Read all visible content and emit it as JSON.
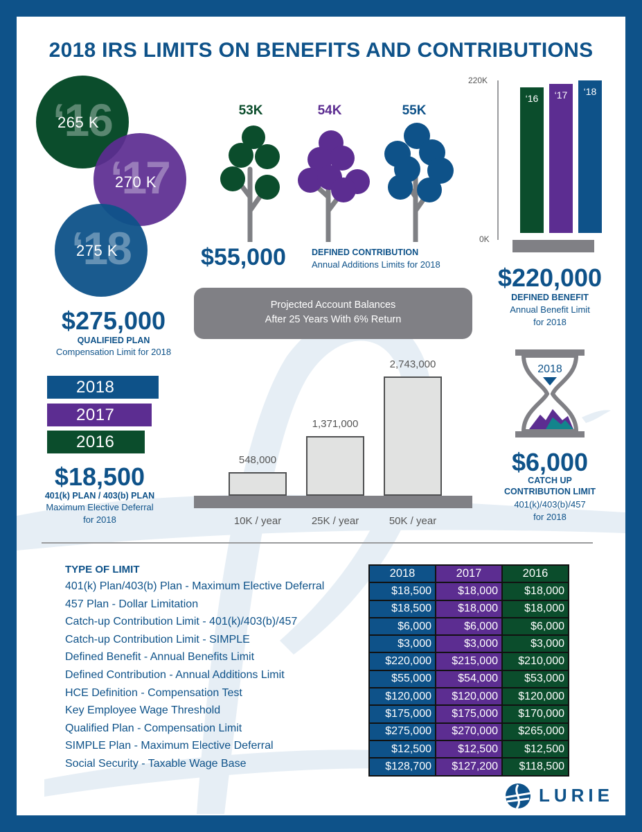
{
  "title": "2018 IRS LIMITS ON BENEFITS AND CONTRIBUTIONS",
  "colors": {
    "blue": "#0e5289",
    "purple": "#5c2d91",
    "green": "#0b4d2c",
    "gray": "#808085",
    "light_gray": "#e1e2e1"
  },
  "qualified_plan": {
    "circles": [
      {
        "year": "‘16",
        "amount": "265 K",
        "color": "#0b4d2c"
      },
      {
        "year": "‘17",
        "amount": "270 K",
        "color": "#5c2d91"
      },
      {
        "year": "‘18",
        "amount": "275 K",
        "color": "#0e5289"
      }
    ],
    "amount": "$275,000",
    "label": "QUALIFIED PLAN",
    "sublabel": "Compensation Limit for 2018"
  },
  "elective_deferral": {
    "bars": [
      {
        "year": "2018",
        "color": "#0e5289"
      },
      {
        "year": "2017",
        "color": "#5c2d91"
      },
      {
        "year": "2016",
        "color": "#0b4d2c"
      }
    ],
    "amount": "$18,500",
    "label": "401(k) PLAN / 403(b) PLAN",
    "sublabel_1": "Maximum Elective Deferral",
    "sublabel_2": "for 2018"
  },
  "defined_contribution": {
    "trees": [
      {
        "label": "53K",
        "color": "#0b4d2c"
      },
      {
        "label": "54K",
        "color": "#5c2d91"
      },
      {
        "label": "55K",
        "color": "#0e5289"
      }
    ],
    "amount": "$55,000",
    "label": "DEFINED CONTRIBUTION",
    "sublabel": "Annual Additions Limits for 2018"
  },
  "defined_benefit": {
    "amount": "$220,000",
    "label": "DEFINED BENEFIT",
    "sublabel_1": "Annual Benefit Limit",
    "sublabel_2": "for 2018"
  },
  "defined_benefit_chart": {
    "type": "bar",
    "categories": [
      "‘16",
      "‘17",
      "‘18"
    ],
    "values": [
      210000,
      215000,
      220000
    ],
    "colors": [
      "#0b4d2c",
      "#5c2d91",
      "#0e5289"
    ],
    "ytick_top": "220K",
    "ytick_bottom": "0K",
    "ylim": [
      0,
      220000
    ]
  },
  "projected": {
    "title_1": "Projected Account Balances",
    "title_2": "After 25 Years With 6% Return"
  },
  "chart_data": {
    "type": "bar",
    "categories": [
      "10K / year",
      "25K / year",
      "50K / year"
    ],
    "values": [
      548000,
      1371000,
      2743000
    ],
    "value_labels": [
      "548,000",
      "1,371,000",
      "2,743,000"
    ],
    "ylim": [
      0,
      2743000
    ]
  },
  "catch_up": {
    "hourglass_year": "2018",
    "amount": "$6,000",
    "label_1": "CATCH UP",
    "label_2": "CONTRIBUTION LIMIT",
    "sublabel_1": "401(k)/403(b)/457",
    "sublabel_2": "for 2018"
  },
  "limits_table": {
    "heading": "TYPE OF LIMIT",
    "columns": [
      "2018",
      "2017",
      "2016"
    ],
    "rows": [
      {
        "label": "401(k) Plan/403(b) Plan - Maximum Elective Deferral",
        "values": [
          "$18,500",
          "$18,000",
          "$18,000"
        ]
      },
      {
        "label": "457 Plan - Dollar Limitation",
        "values": [
          "$18,500",
          "$18,000",
          "$18,000"
        ]
      },
      {
        "label": "Catch-up Contribution Limit - 401(k)/403(b)/457",
        "values": [
          "$6,000",
          "$6,000",
          "$6,000"
        ]
      },
      {
        "label": "Catch-up Contribution Limit - SIMPLE",
        "values": [
          "$3,000",
          "$3,000",
          "$3,000"
        ]
      },
      {
        "label": "Defined Benefit - Annual Benefits Limit",
        "values": [
          "$220,000",
          "$215,000",
          "$210,000"
        ]
      },
      {
        "label": "Defined Contribution - Annual Additions Limit",
        "values": [
          "$55,000",
          "$54,000",
          "$53,000"
        ]
      },
      {
        "label": "HCE Definition - Compensation Test",
        "values": [
          "$120,000",
          "$120,000",
          "$120,000"
        ]
      },
      {
        "label": "Key Employee Wage Threshold",
        "values": [
          "$175,000",
          "$175,000",
          "$170,000"
        ]
      },
      {
        "label": "Qualified Plan - Compensation Limit",
        "values": [
          "$275,000",
          "$270,000",
          "$265,000"
        ]
      },
      {
        "label": "SIMPLE Plan - Maximum Elective Deferral",
        "values": [
          "$12,500",
          "$12,500",
          "$12,500"
        ]
      },
      {
        "label": "Social Security - Taxable Wage Base",
        "values": [
          "$128,700",
          "$127,200",
          "$118,500"
        ]
      }
    ]
  },
  "logo": {
    "text": "LURIE",
    "icon": "lurie-logo-icon"
  }
}
